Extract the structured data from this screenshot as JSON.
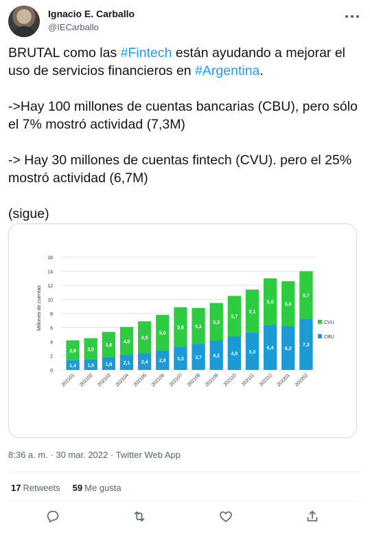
{
  "user": {
    "display_name": "Ignacio E. Carballo",
    "handle": "@IECarballo"
  },
  "tweet": {
    "line1_a": "BRUTAL como las ",
    "hashtag1": "#Fintech",
    "line1_b": " están ayudando a mejorar el uso de servicios financieros en ",
    "hashtag2": "#Argentina",
    "line1_c": ".",
    "para2": "->Hay 100 millones de cuentas bancarias (CBU), pero sólo el 7% mostró actividad (7,3M)",
    "para3": "-> Hay 30 millones de cuentas fintech (CVU). pero el 25% mostró actividad (6,7M)",
    "para4": "(sigue)"
  },
  "meta": {
    "timestamp": "8:36 a. m. · 30 mar. 2022 · Twitter Web App"
  },
  "stats": {
    "retweets_count": "17",
    "retweets_label": "Retweets",
    "likes_count": "59",
    "likes_label": "Me gusta"
  },
  "colors": {
    "cbu": "#1b9ad6",
    "cvu": "#2ecc40",
    "link": "#1d9bf0"
  },
  "chart_data": {
    "type": "bar",
    "stacked": true,
    "ylabel": "Millones de cuentas",
    "ylim": [
      0,
      16
    ],
    "yticks": [
      0,
      2,
      4,
      6,
      8,
      10,
      12,
      14,
      16
    ],
    "grid": true,
    "legend": "right",
    "categories": [
      "202101",
      "202102",
      "202103",
      "202104",
      "202105",
      "202106",
      "202107",
      "202108",
      "202109",
      "202110",
      "202111",
      "202112",
      "202201",
      "202202"
    ],
    "series": [
      {
        "name": "CBU",
        "values": [
          1.4,
          1.5,
          1.8,
          2.1,
          2.4,
          2.8,
          3.3,
          3.7,
          4.2,
          4.8,
          5.3,
          6.4,
          6.2,
          7.3
        ],
        "labels": [
          "1,4",
          "1,5",
          "1,8",
          "2,1",
          "2,4",
          "2,8",
          "3,3",
          "3,7",
          "4,2",
          "4,8",
          "5,3",
          "6,4",
          "6,2",
          "7,3"
        ]
      },
      {
        "name": "CVU",
        "values": [
          2.8,
          3.0,
          3.6,
          4.0,
          4.5,
          5.0,
          5.6,
          5.1,
          5.3,
          5.7,
          6.1,
          6.6,
          6.4,
          6.7
        ],
        "labels": [
          "2,8",
          "3,0",
          "3,6",
          "4,0",
          "4,5",
          "5,0",
          "5,6",
          "5,1",
          "5,3",
          "5,7",
          "6,1",
          "6,6",
          "6,4",
          "6,7"
        ]
      }
    ]
  }
}
